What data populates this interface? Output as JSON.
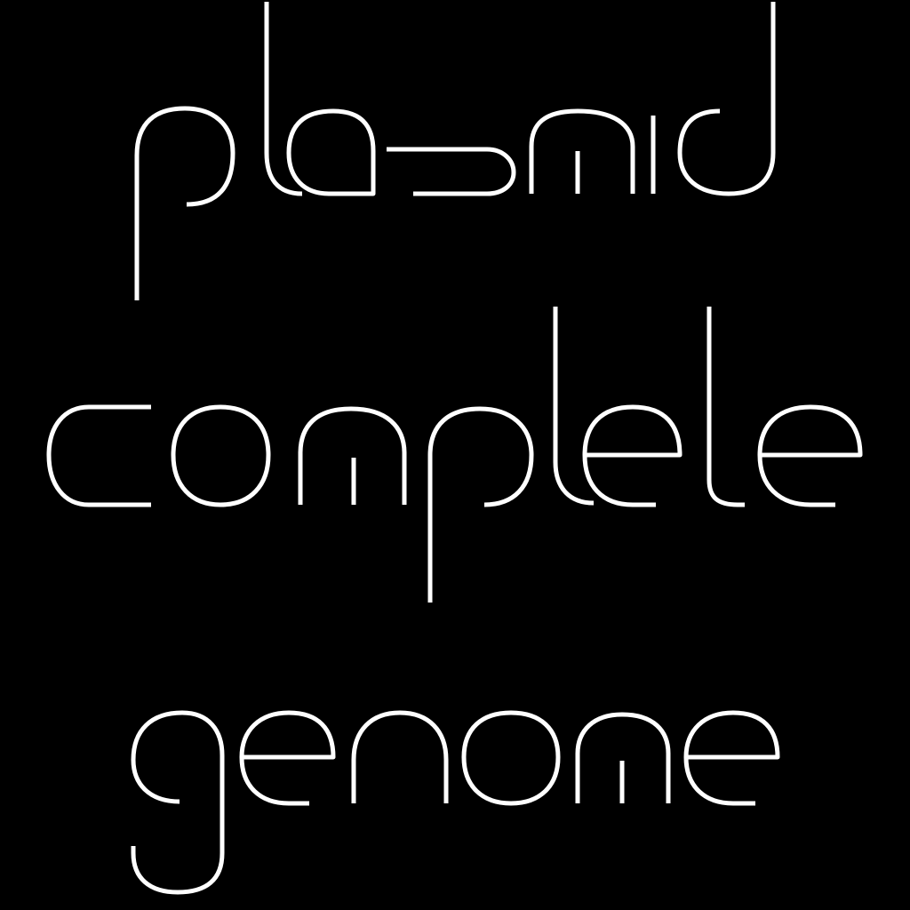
{
  "lines": [
    {
      "text": "plasmid"
    },
    {
      "text": "complete"
    },
    {
      "text": "genome"
    }
  ],
  "colors": {
    "background": "#000000",
    "stroke": "#ffffff"
  }
}
